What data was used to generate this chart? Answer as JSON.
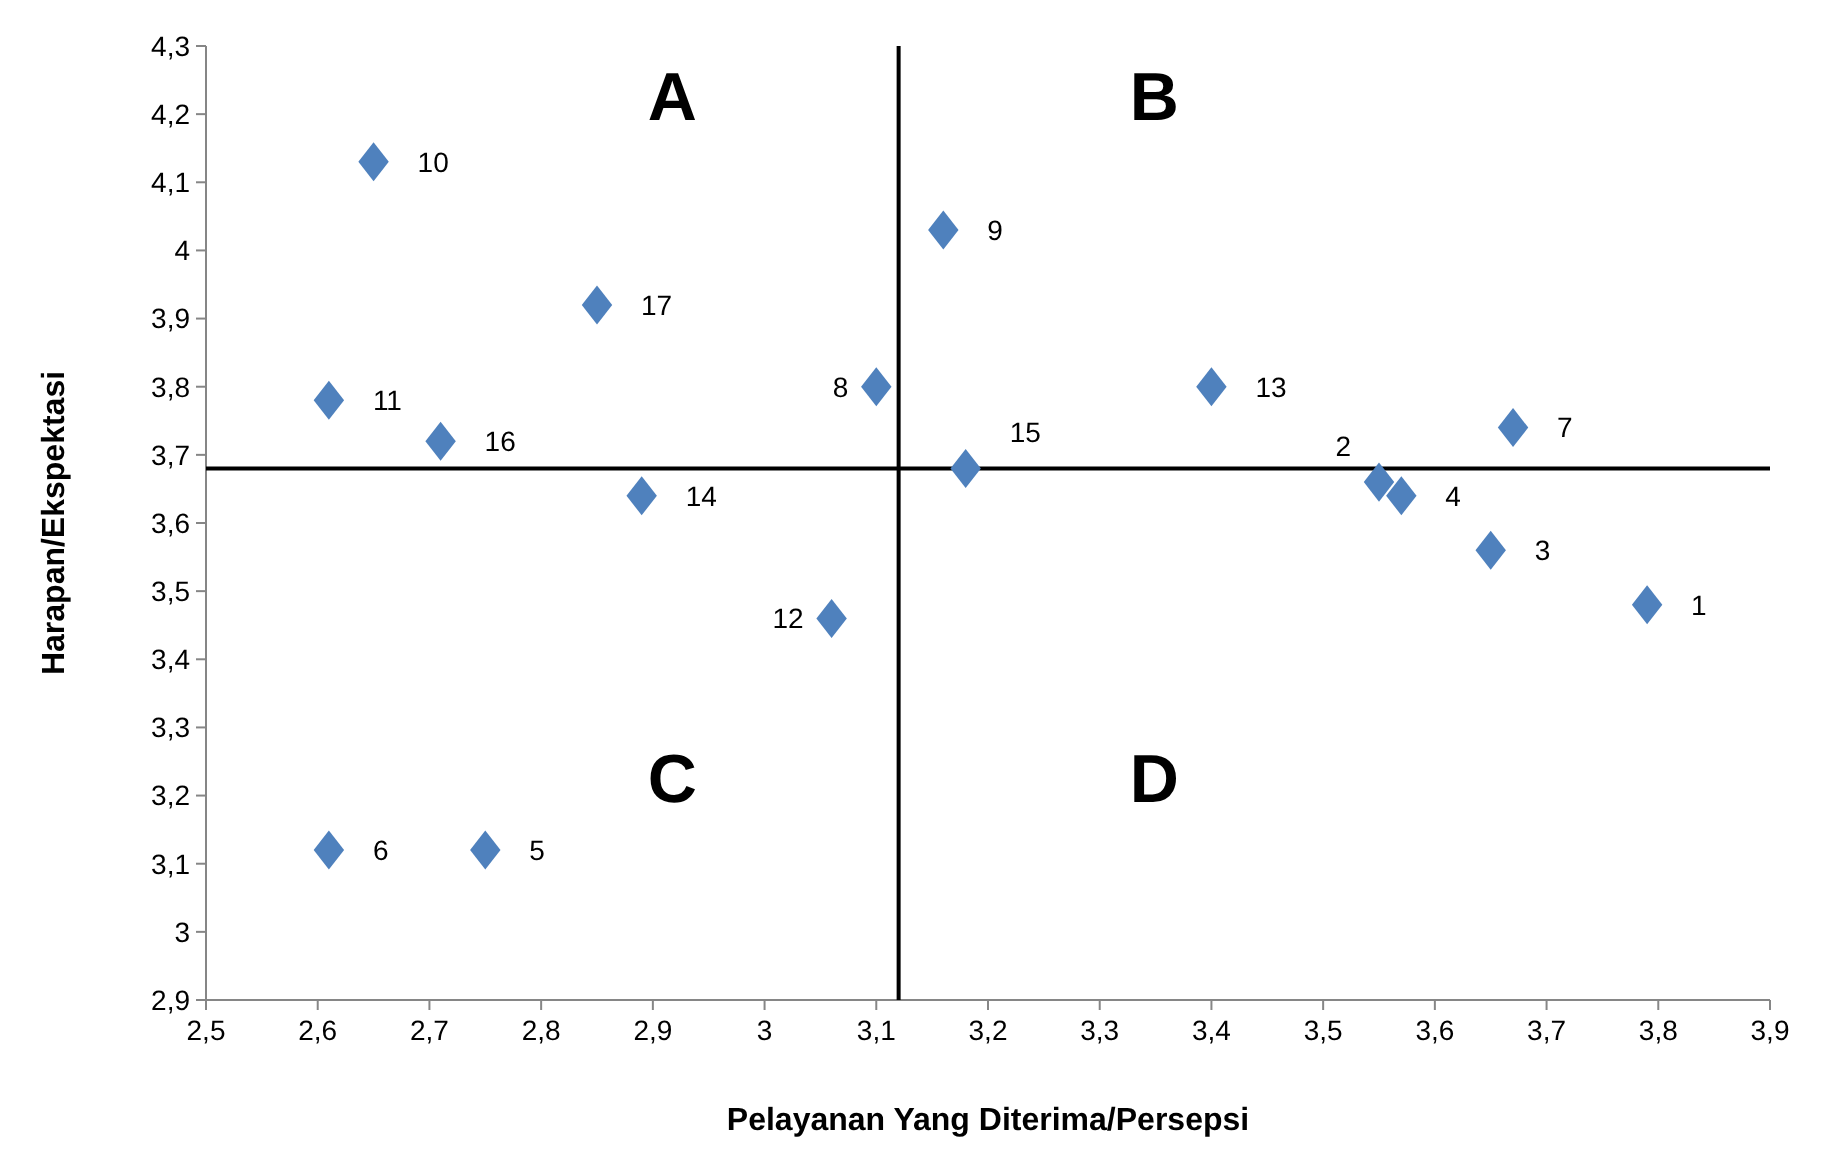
{
  "chart_data": {
    "type": "scatter",
    "xlabel": "Pelayanan Yang Diterima/Persepsi",
    "ylabel": "Harapan/Ekspektasi",
    "marker": "diamond",
    "grid": false,
    "legend": false,
    "xlim": [
      2.5,
      3.9
    ],
    "xticks": [
      {
        "value": 2.5,
        "label": "2,5"
      },
      {
        "value": 2.6,
        "label": "2,6"
      },
      {
        "value": 2.7,
        "label": "2,7"
      },
      {
        "value": 2.8,
        "label": "2,8"
      },
      {
        "value": 2.9,
        "label": "2,9"
      },
      {
        "value": 3,
        "label": "3"
      },
      {
        "value": 3.1,
        "label": "3,1"
      },
      {
        "value": 3.2,
        "label": "3,2"
      },
      {
        "value": 3.3,
        "label": "3,3"
      },
      {
        "value": 3.4,
        "label": "3,4"
      },
      {
        "value": 3.5,
        "label": "3,5"
      },
      {
        "value": 3.6,
        "label": "3,6"
      },
      {
        "value": 3.7,
        "label": "3,7"
      },
      {
        "value": 3.8,
        "label": "3,8"
      },
      {
        "value": 3.9,
        "label": "3,9"
      }
    ],
    "ylim": [
      2.9,
      4.3
    ],
    "yticks": [
      {
        "value": 2.9,
        "label": "2,9"
      },
      {
        "value": 3,
        "label": "3"
      },
      {
        "value": 3.1,
        "label": "3,1"
      },
      {
        "value": 3.2,
        "label": "3,2"
      },
      {
        "value": 3.3,
        "label": "3,3"
      },
      {
        "value": 3.4,
        "label": "3,4"
      },
      {
        "value": 3.5,
        "label": "3,5"
      },
      {
        "value": 3.6,
        "label": "3,6"
      },
      {
        "value": 3.7,
        "label": "3,7"
      },
      {
        "value": 3.8,
        "label": "3,8"
      },
      {
        "value": 3.9,
        "label": "3,9"
      },
      {
        "value": 4,
        "label": "4"
      },
      {
        "value": 4.1,
        "label": "4,1"
      },
      {
        "value": 4.2,
        "label": "4,2"
      },
      {
        "value": 4.3,
        "label": "4,3"
      }
    ],
    "series": [
      {
        "name": "1",
        "color": "#4f81bd",
        "x": [
          3.79
        ],
        "values": [
          3.48
        ]
      },
      {
        "name": "2",
        "color": "#4f81bd",
        "x": [
          3.55
        ],
        "values": [
          3.66
        ]
      },
      {
        "name": "3",
        "color": "#4f81bd",
        "x": [
          3.65
        ],
        "values": [
          3.56
        ]
      },
      {
        "name": "4",
        "color": "#4f81bd",
        "x": [
          3.57
        ],
        "values": [
          3.64
        ]
      },
      {
        "name": "5",
        "color": "#4f81bd",
        "x": [
          2.75
        ],
        "values": [
          3.12
        ]
      },
      {
        "name": "6",
        "color": "#4f81bd",
        "x": [
          2.61
        ],
        "values": [
          3.12
        ]
      },
      {
        "name": "7",
        "color": "#4f81bd",
        "x": [
          3.67
        ],
        "values": [
          3.74
        ]
      },
      {
        "name": "8",
        "color": "#4f81bd",
        "x": [
          3.1
        ],
        "values": [
          3.8
        ]
      },
      {
        "name": "9",
        "color": "#4f81bd",
        "x": [
          3.16
        ],
        "values": [
          4.03
        ]
      },
      {
        "name": "10",
        "color": "#4f81bd",
        "x": [
          2.65
        ],
        "values": [
          4.13
        ]
      },
      {
        "name": "11",
        "color": "#4f81bd",
        "x": [
          2.61
        ],
        "values": [
          3.78
        ]
      },
      {
        "name": "12",
        "color": "#4f81bd",
        "x": [
          3.06
        ],
        "values": [
          3.46
        ]
      },
      {
        "name": "13",
        "color": "#4f81bd",
        "x": [
          3.4
        ],
        "values": [
          3.8
        ]
      },
      {
        "name": "14",
        "color": "#4f81bd",
        "x": [
          2.89
        ],
        "values": [
          3.64
        ]
      },
      {
        "name": "15",
        "color": "#4f81bd",
        "x": [
          3.18
        ],
        "values": [
          3.68
        ]
      },
      {
        "name": "16",
        "color": "#4f81bd",
        "x": [
          2.71
        ],
        "values": [
          3.72
        ]
      },
      {
        "name": "17",
        "color": "#4f81bd",
        "x": [
          2.85
        ],
        "values": [
          3.92
        ]
      }
    ],
    "ref_lines": [
      {
        "axis": "x",
        "value": 3.12,
        "color": "#000000"
      },
      {
        "axis": "y",
        "value": 3.68,
        "color": "#000000"
      }
    ],
    "annotations": [
      "A",
      "B",
      "C",
      "D"
    ]
  }
}
